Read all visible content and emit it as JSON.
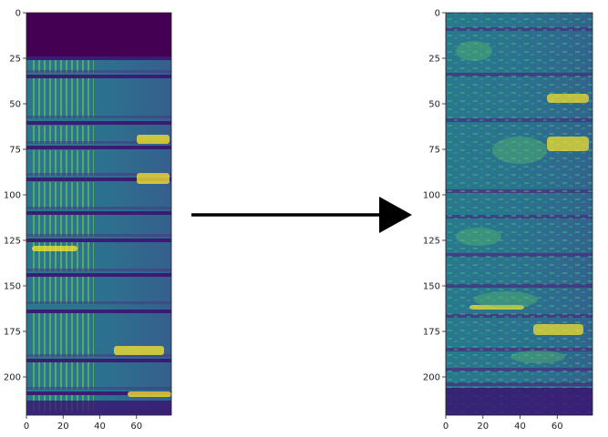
{
  "figure": {
    "description_visible": "",
    "arrow_direction": "right",
    "colormap": "viridis"
  },
  "left_plot": {
    "y_ticks": [
      "0",
      "25",
      "50",
      "75",
      "100",
      "125",
      "150",
      "175",
      "200"
    ],
    "x_ticks": [
      "0",
      "20",
      "40",
      "60"
    ],
    "y_range": [
      0,
      221
    ],
    "x_range": [
      0,
      79
    ]
  },
  "right_plot": {
    "y_ticks": [
      "0",
      "25",
      "50",
      "75",
      "100",
      "125",
      "150",
      "175",
      "200"
    ],
    "x_ticks": [
      "0",
      "20",
      "40",
      "60"
    ],
    "y_range": [
      0,
      221
    ],
    "x_range": [
      0,
      79
    ]
  },
  "colors": {
    "dark": "#440154",
    "mid": "#21918c",
    "bright": "#fde725"
  }
}
